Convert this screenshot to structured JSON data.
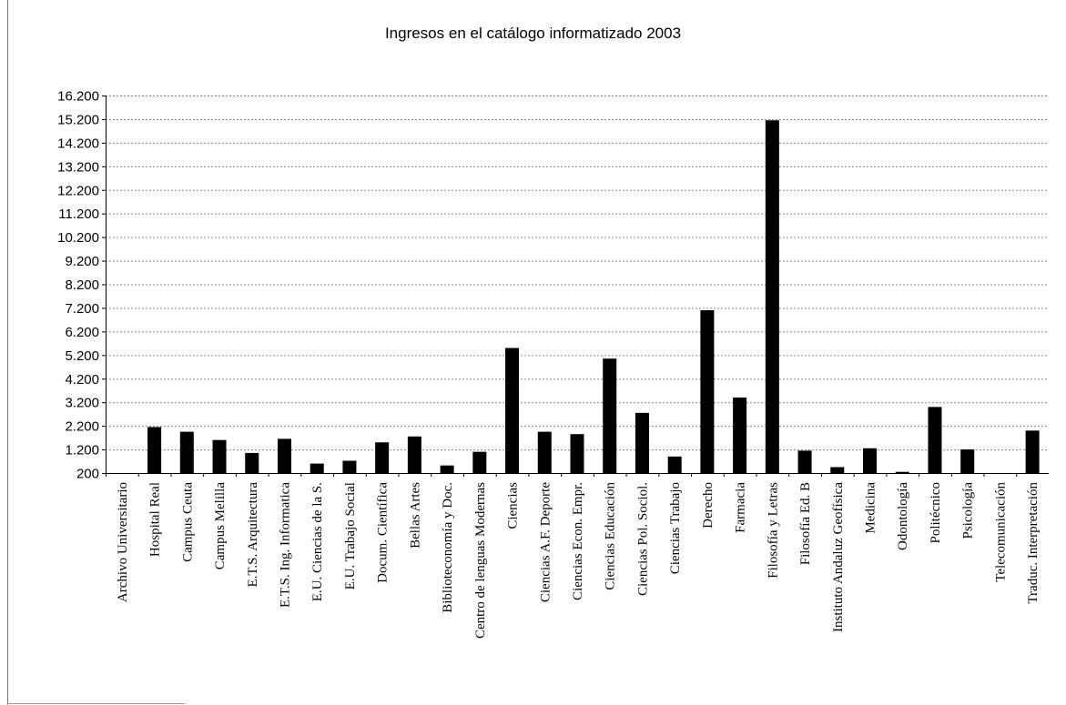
{
  "chart_data": {
    "type": "bar",
    "title": "Ingresos en el catálogo informatizado 2003",
    "xlabel": "",
    "ylabel": "",
    "ylim": [
      200,
      16200
    ],
    "yticks": [
      "16.200",
      "15.200",
      "14.200",
      "13.200",
      "12.200",
      "11.200",
      "10.200",
      "9.200",
      "8.200",
      "7.200",
      "6.200",
      "5.200",
      "4.200",
      "3.200",
      "2.200",
      "1.200",
      "200"
    ],
    "ytick_values": [
      16200,
      15200,
      14200,
      13200,
      12200,
      11200,
      10200,
      9200,
      8200,
      7200,
      6200,
      5200,
      4200,
      3200,
      2200,
      1200,
      200
    ],
    "grid": true,
    "legend": "none",
    "bar_color": "#000000",
    "categories": [
      "Archivo Universitario",
      "Hospital Real",
      "Campus Ceuta",
      "Campus Melilla",
      "E.T.S. Arquitectura",
      "E.T.S. Ing. Informatica",
      "E.U. Ciencias de la S.",
      "E.U. Trabajo Social",
      "Docum. Científica",
      "Bellas Artes",
      "Biblioteconomía y Doc.",
      "Centro de lenguas Modernas",
      "Ciencias",
      "Ciencias A.F. Deporte",
      "Ciencias Econ. Empr.",
      "Ciencias Educación",
      "Ciencias Pol. Sociol.",
      "Ciencias Trabajo",
      "Derecho",
      "Farmacia",
      "Filosofía y Letras",
      "Filosofía Ed. B",
      "Instituto Andaluz Geofísica",
      "Medicina",
      "Odontología",
      "Politécnico",
      "Psicología",
      "Telecomunicación",
      "Traduc. Interpretación"
    ],
    "values": [
      200,
      2150,
      1950,
      1600,
      1050,
      1650,
      600,
      720,
      1500,
      1750,
      520,
      1100,
      5500,
      1950,
      1850,
      5050,
      2750,
      900,
      7100,
      3400,
      15150,
      1150,
      450,
      1250,
      250,
      3000,
      1200,
      200,
      2000
    ]
  }
}
